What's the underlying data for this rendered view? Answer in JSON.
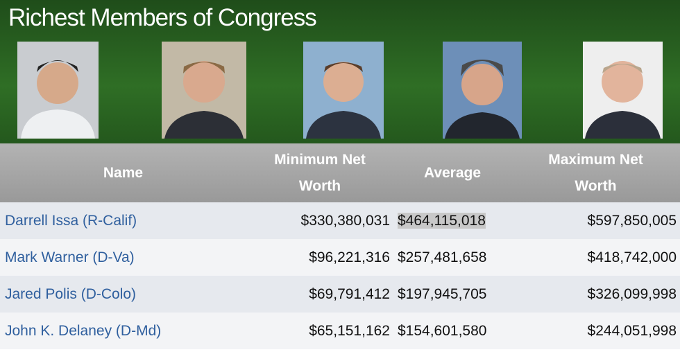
{
  "header": {
    "title": "Richest Members of Congress"
  },
  "table": {
    "columns": [
      "Name",
      "Minimum Net Worth",
      "Average",
      "Maximum Net Worth"
    ],
    "rows": [
      [
        "Darrell Issa (R-Calif)",
        "$330,380,031",
        "$464,115,018",
        "$597,850,005"
      ],
      [
        "Mark Warner (D-Va)",
        "$96,221,316",
        "$257,481,658",
        "$418,742,000"
      ],
      [
        "Jared Polis (D-Colo)",
        "$69,791,412",
        "$197,945,705",
        "$326,099,998"
      ],
      [
        "John K. Delaney (D-Md)",
        "$65,151,162",
        "$154,601,580",
        "$244,051,998"
      ]
    ]
  }
}
